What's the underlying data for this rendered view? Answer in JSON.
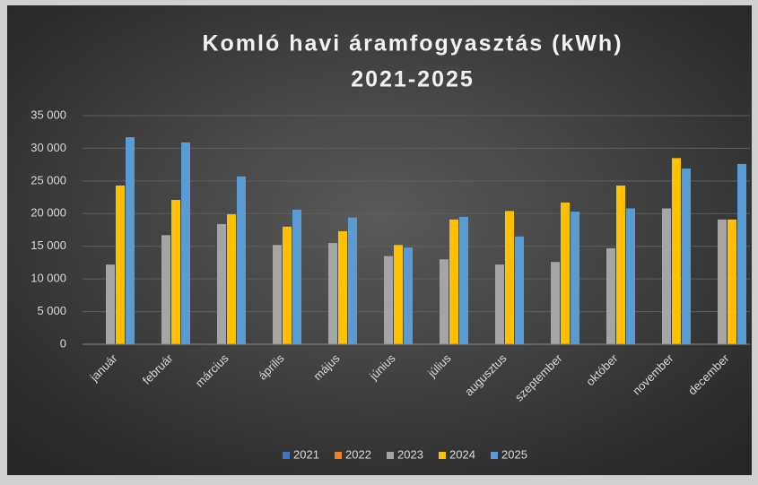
{
  "chart_data": {
    "type": "bar",
    "title": "Komló havi áramfogyasztás (kWh)",
    "subtitle": "2021-2025",
    "categories": [
      "január",
      "február",
      "március",
      "április",
      "május",
      "június",
      "július",
      "augusztus",
      "szeptember",
      "október",
      "november",
      "december"
    ],
    "series": [
      {
        "name": "2021",
        "color": "#4472c4",
        "values": [
          null,
          null,
          null,
          null,
          null,
          null,
          null,
          null,
          null,
          null,
          null,
          null
        ]
      },
      {
        "name": "2022",
        "color": "#ed7d31",
        "values": [
          null,
          null,
          null,
          null,
          null,
          null,
          null,
          null,
          null,
          null,
          null,
          null
        ]
      },
      {
        "name": "2023",
        "color": "#a5a5a5",
        "values": [
          12200,
          16700,
          18400,
          15200,
          15500,
          13500,
          13000,
          12200,
          12600,
          14700,
          20800,
          19100
        ]
      },
      {
        "name": "2024",
        "color": "#ffc000",
        "values": [
          24300,
          22100,
          19900,
          18000,
          17300,
          15200,
          19100,
          20400,
          21700,
          24300,
          28500,
          19100
        ]
      },
      {
        "name": "2025",
        "color": "#5b9bd5",
        "values": [
          31700,
          30900,
          25700,
          20600,
          19400,
          14800,
          19500,
          16500,
          20300,
          20800,
          26900,
          27600
        ]
      }
    ],
    "ylim": [
      0,
      35000
    ],
    "yticks": [
      0,
      {
        "value": 5000,
        "label": "5 000"
      },
      {
        "value": 10000,
        "label": "10 000"
      },
      {
        "value": 15000,
        "label": "15 000"
      },
      {
        "value": 20000,
        "label": "20 000"
      },
      {
        "value": 25000,
        "label": "25 000"
      },
      {
        "value": 30000,
        "label": "30 000"
      },
      {
        "value": 35000,
        "label": "35 000"
      }
    ],
    "grid": true,
    "legend": "bottom"
  }
}
